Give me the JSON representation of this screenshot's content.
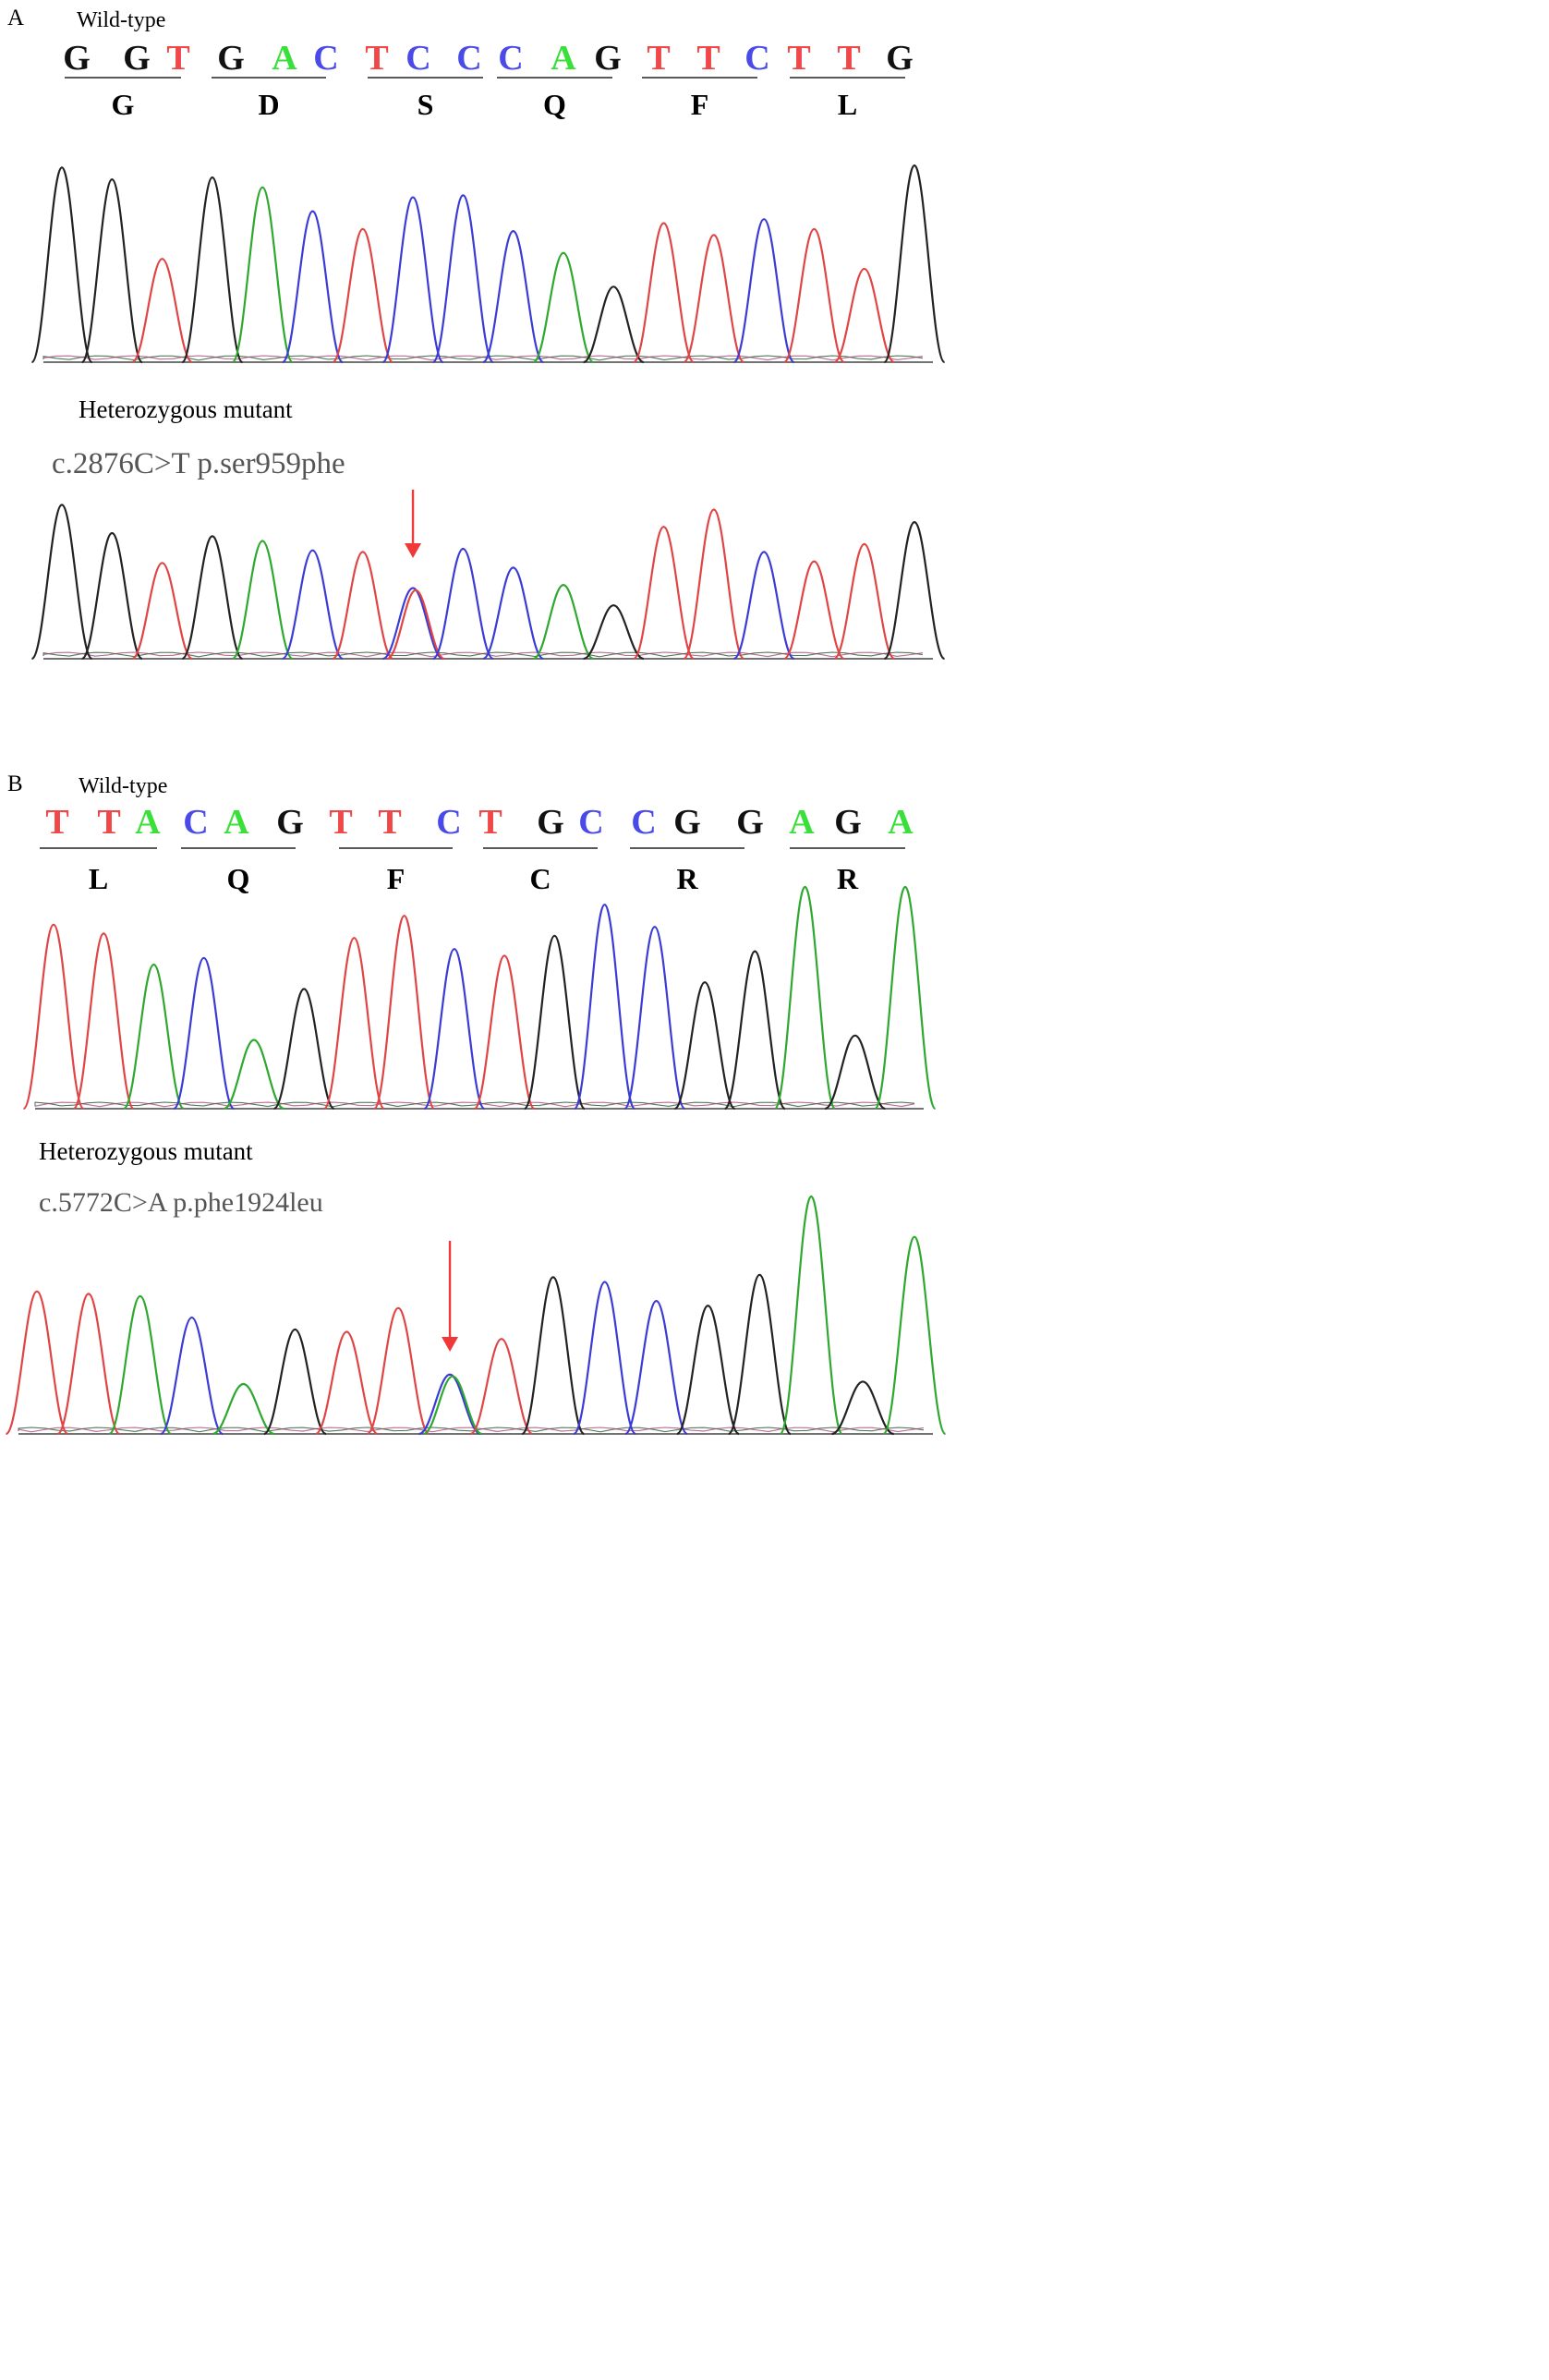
{
  "panels": [
    {
      "letter": "A",
      "wild_label": "Wild-type",
      "bases": [
        "G",
        "G",
        "T",
        "G",
        "A",
        "C",
        "T",
        "C",
        "C",
        "C",
        "A",
        "G",
        "T",
        "T",
        "C",
        "T",
        "T",
        "G"
      ],
      "codons": [
        "G",
        "D",
        "S",
        "Q",
        "F",
        "L"
      ],
      "wild_peaks": [
        {
          "base": "G",
          "h": 0.98
        },
        {
          "base": "G",
          "h": 0.92
        },
        {
          "base": "T",
          "h": 0.52
        },
        {
          "base": "G",
          "h": 0.93
        },
        {
          "base": "A",
          "h": 0.88
        },
        {
          "base": "C",
          "h": 0.76
        },
        {
          "base": "T",
          "h": 0.67
        },
        {
          "base": "C",
          "h": 0.83
        },
        {
          "base": "C",
          "h": 0.84
        },
        {
          "base": "C",
          "h": 0.66
        },
        {
          "base": "A",
          "h": 0.55
        },
        {
          "base": "G",
          "h": 0.38
        },
        {
          "base": "T",
          "h": 0.7
        },
        {
          "base": "T",
          "h": 0.64
        },
        {
          "base": "C",
          "h": 0.72
        },
        {
          "base": "T",
          "h": 0.67
        },
        {
          "base": "T",
          "h": 0.47
        },
        {
          "base": "G",
          "h": 0.99
        }
      ],
      "mutant_label": "Heterozygous mutant",
      "mutation": "c.2876C>T p.ser959phe",
      "mutant_peaks": [
        {
          "base": "G",
          "h": 0.98
        },
        {
          "base": "G",
          "h": 0.8
        },
        {
          "base": "T",
          "h": 0.61
        },
        {
          "base": "G",
          "h": 0.78
        },
        {
          "base": "A",
          "h": 0.75
        },
        {
          "base": "C",
          "h": 0.69
        },
        {
          "base": "T",
          "h": 0.68
        },
        {
          "base": "C",
          "h": 0.45,
          "overlay": "T"
        },
        {
          "base": "C",
          "h": 0.7
        },
        {
          "base": "C",
          "h": 0.58
        },
        {
          "base": "A",
          "h": 0.47
        },
        {
          "base": "G",
          "h": 0.34
        },
        {
          "base": "T",
          "h": 0.84
        },
        {
          "base": "T",
          "h": 0.95
        },
        {
          "base": "C",
          "h": 0.68
        },
        {
          "base": "T",
          "h": 0.62
        },
        {
          "base": "T",
          "h": 0.73
        },
        {
          "base": "G",
          "h": 0.87
        }
      ],
      "arrow_index": 7
    },
    {
      "letter": "B",
      "wild_label": "Wild-type",
      "bases": [
        "T",
        "T",
        "A",
        "C",
        "A",
        "G",
        "T",
        "T",
        "C",
        "T",
        "G",
        "C",
        "C",
        "G",
        "G",
        "A",
        "G",
        "A"
      ],
      "codons": [
        "L",
        "Q",
        "F",
        "C",
        "R",
        "R"
      ],
      "wild_peaks": [
        {
          "base": "T",
          "h": 0.83
        },
        {
          "base": "T",
          "h": 0.79
        },
        {
          "base": "A",
          "h": 0.65
        },
        {
          "base": "C",
          "h": 0.68
        },
        {
          "base": "A",
          "h": 0.31
        },
        {
          "base": "G",
          "h": 0.54
        },
        {
          "base": "T",
          "h": 0.77
        },
        {
          "base": "T",
          "h": 0.87
        },
        {
          "base": "C",
          "h": 0.72
        },
        {
          "base": "T",
          "h": 0.69
        },
        {
          "base": "G",
          "h": 0.78
        },
        {
          "base": "C",
          "h": 0.92
        },
        {
          "base": "C",
          "h": 0.82
        },
        {
          "base": "G",
          "h": 0.57
        },
        {
          "base": "G",
          "h": 0.71
        },
        {
          "base": "A",
          "h": 1.0
        },
        {
          "base": "G",
          "h": 0.33
        },
        {
          "base": "A",
          "h": 1.0
        }
      ],
      "mutant_label": "Heterozygous mutant",
      "mutation": "c.5772C>A p.phe1924leu",
      "mutant_peaks": [
        {
          "base": "T",
          "h": 0.6
        },
        {
          "base": "T",
          "h": 0.59
        },
        {
          "base": "A",
          "h": 0.58
        },
        {
          "base": "C",
          "h": 0.49
        },
        {
          "base": "A",
          "h": 0.21
        },
        {
          "base": "G",
          "h": 0.44
        },
        {
          "base": "T",
          "h": 0.43
        },
        {
          "base": "T",
          "h": 0.53
        },
        {
          "base": "C",
          "h": 0.25,
          "overlay": "A"
        },
        {
          "base": "T",
          "h": 0.4
        },
        {
          "base": "G",
          "h": 0.66
        },
        {
          "base": "C",
          "h": 0.64
        },
        {
          "base": "C",
          "h": 0.56
        },
        {
          "base": "G",
          "h": 0.54
        },
        {
          "base": "G",
          "h": 0.67
        },
        {
          "base": "A",
          "h": 1.0
        },
        {
          "base": "G",
          "h": 0.22
        },
        {
          "base": "A",
          "h": 0.83
        }
      ],
      "arrow_index": 8
    }
  ],
  "colors": {
    "A": "#2ea82e",
    "C": "#3b3bd6",
    "G": "#222222",
    "T": "#e04545",
    "base_text_A": "#39e039",
    "base_text_C": "#4a4ae8",
    "base_text_G": "#111111",
    "base_text_T": "#f04848",
    "mutation_text": "#555555",
    "arrow": "#f03838"
  }
}
